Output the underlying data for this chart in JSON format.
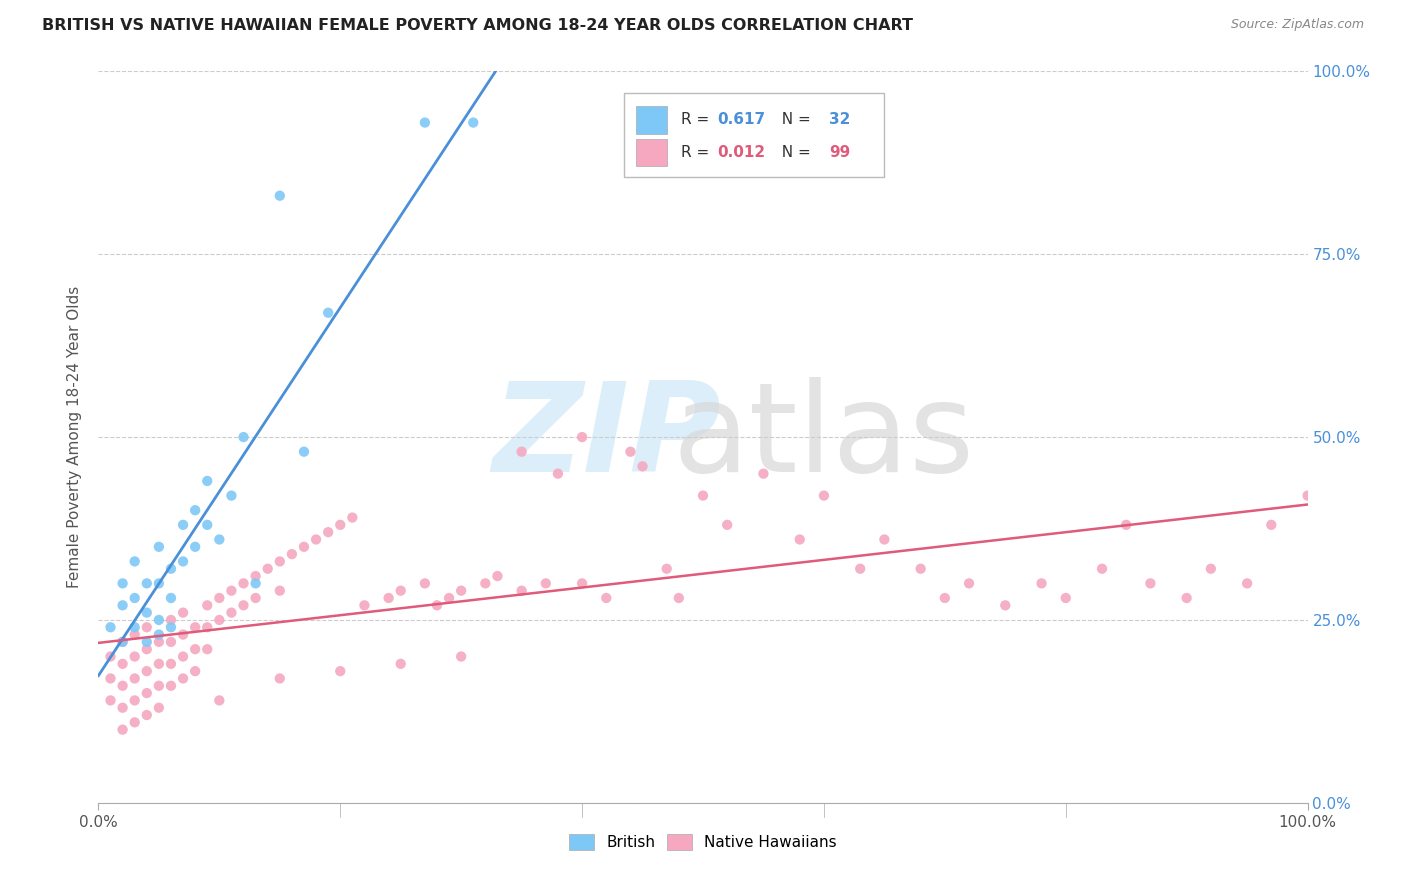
{
  "title": "BRITISH VS NATIVE HAWAIIAN FEMALE POVERTY AMONG 18-24 YEAR OLDS CORRELATION CHART",
  "source": "Source: ZipAtlas.com",
  "ylabel": "Female Poverty Among 18-24 Year Olds",
  "xlim": [
    0,
    1.0
  ],
  "ylim": [
    0,
    1.0
  ],
  "ytick_positions": [
    0.0,
    0.25,
    0.5,
    0.75,
    1.0
  ],
  "ytick_labels_right": [
    "0.0%",
    "25.0%",
    "50.0%",
    "75.0%",
    "100.0%"
  ],
  "xtick_positions": [
    0.0,
    1.0
  ],
  "xtick_labels": [
    "0.0%",
    "100.0%"
  ],
  "british_R": "0.617",
  "british_N": "32",
  "hawaiian_R": "0.012",
  "hawaiian_N": "99",
  "british_color": "#7ec8f7",
  "hawaiian_color": "#f5a8c0",
  "british_line_color": "#4a90d9",
  "hawaiian_line_color": "#e05a7a",
  "right_axis_color": "#4a90d9",
  "r_color_british": "#4a90d9",
  "r_color_hawaiian": "#e05a7a",
  "brit_x": [
    0.01,
    0.02,
    0.02,
    0.02,
    0.03,
    0.03,
    0.03,
    0.04,
    0.04,
    0.04,
    0.05,
    0.05,
    0.05,
    0.05,
    0.06,
    0.06,
    0.06,
    0.07,
    0.07,
    0.08,
    0.08,
    0.09,
    0.09,
    0.1,
    0.11,
    0.12,
    0.13,
    0.15,
    0.17,
    0.19,
    0.27,
    0.31
  ],
  "brit_y": [
    0.24,
    0.27,
    0.3,
    0.22,
    0.33,
    0.28,
    0.24,
    0.3,
    0.26,
    0.22,
    0.35,
    0.3,
    0.25,
    0.23,
    0.32,
    0.28,
    0.24,
    0.38,
    0.33,
    0.4,
    0.35,
    0.44,
    0.38,
    0.36,
    0.42,
    0.5,
    0.3,
    0.83,
    0.48,
    0.67,
    0.93,
    0.93
  ],
  "haw_x": [
    0.01,
    0.01,
    0.01,
    0.02,
    0.02,
    0.02,
    0.02,
    0.02,
    0.03,
    0.03,
    0.03,
    0.03,
    0.03,
    0.04,
    0.04,
    0.04,
    0.04,
    0.04,
    0.05,
    0.05,
    0.05,
    0.05,
    0.06,
    0.06,
    0.06,
    0.06,
    0.07,
    0.07,
    0.07,
    0.07,
    0.08,
    0.08,
    0.08,
    0.09,
    0.09,
    0.09,
    0.1,
    0.1,
    0.11,
    0.11,
    0.12,
    0.12,
    0.13,
    0.13,
    0.14,
    0.15,
    0.15,
    0.16,
    0.17,
    0.18,
    0.19,
    0.2,
    0.21,
    0.22,
    0.24,
    0.25,
    0.27,
    0.28,
    0.29,
    0.3,
    0.32,
    0.33,
    0.35,
    0.37,
    0.38,
    0.4,
    0.42,
    0.44,
    0.47,
    0.48,
    0.5,
    0.52,
    0.55,
    0.58,
    0.6,
    0.63,
    0.65,
    0.68,
    0.7,
    0.72,
    0.75,
    0.78,
    0.8,
    0.83,
    0.85,
    0.87,
    0.9,
    0.92,
    0.95,
    0.97,
    1.0,
    0.35,
    0.4,
    0.45,
    0.3,
    0.25,
    0.2,
    0.15,
    0.1
  ],
  "haw_y": [
    0.2,
    0.17,
    0.14,
    0.22,
    0.19,
    0.16,
    0.13,
    0.1,
    0.23,
    0.2,
    0.17,
    0.14,
    0.11,
    0.24,
    0.21,
    0.18,
    0.15,
    0.12,
    0.22,
    0.19,
    0.16,
    0.13,
    0.25,
    0.22,
    0.19,
    0.16,
    0.26,
    0.23,
    0.2,
    0.17,
    0.24,
    0.21,
    0.18,
    0.27,
    0.24,
    0.21,
    0.28,
    0.25,
    0.29,
    0.26,
    0.3,
    0.27,
    0.31,
    0.28,
    0.32,
    0.33,
    0.29,
    0.34,
    0.35,
    0.36,
    0.37,
    0.38,
    0.39,
    0.27,
    0.28,
    0.29,
    0.3,
    0.27,
    0.28,
    0.29,
    0.3,
    0.31,
    0.29,
    0.3,
    0.45,
    0.3,
    0.28,
    0.48,
    0.32,
    0.28,
    0.42,
    0.38,
    0.45,
    0.36,
    0.42,
    0.32,
    0.36,
    0.32,
    0.28,
    0.3,
    0.27,
    0.3,
    0.28,
    0.32,
    0.38,
    0.3,
    0.28,
    0.32,
    0.3,
    0.38,
    0.42,
    0.48,
    0.5,
    0.46,
    0.2,
    0.19,
    0.18,
    0.17,
    0.14
  ]
}
